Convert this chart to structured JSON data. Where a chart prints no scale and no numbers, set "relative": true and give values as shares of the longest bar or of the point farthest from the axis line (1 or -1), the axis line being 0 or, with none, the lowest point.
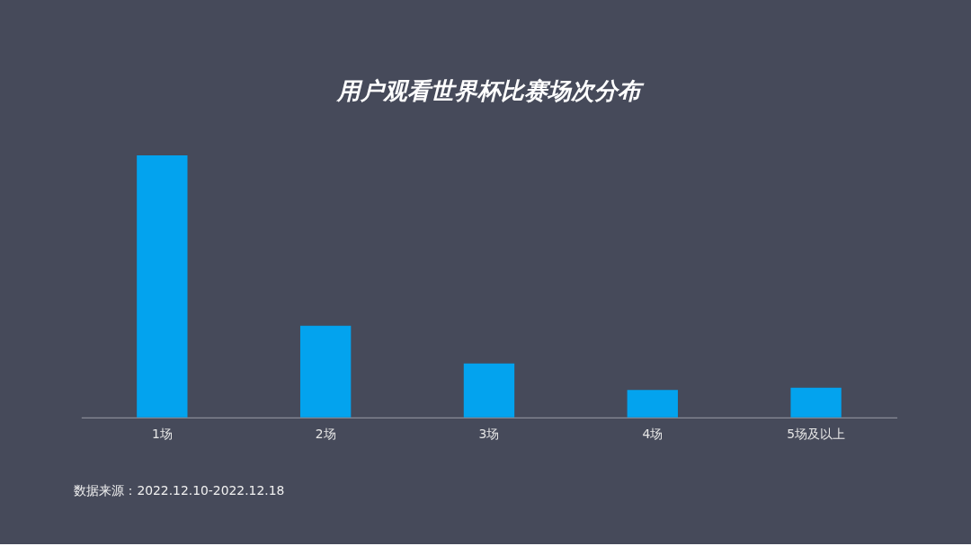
{
  "chart_data": {
    "type": "bar",
    "title": "用户观看世界杯比赛场次分布",
    "categories": [
      "1场",
      "2场",
      "3场",
      "4场",
      "5场及以上"
    ],
    "values": [
      1,
      0.35,
      0.206,
      0.105,
      0.113
    ],
    "color": "#03a3ee",
    "relative": true,
    "grid": false,
    "annotations": [
      "数据来源：2022.12.10-2022.12.18"
    ]
  }
}
